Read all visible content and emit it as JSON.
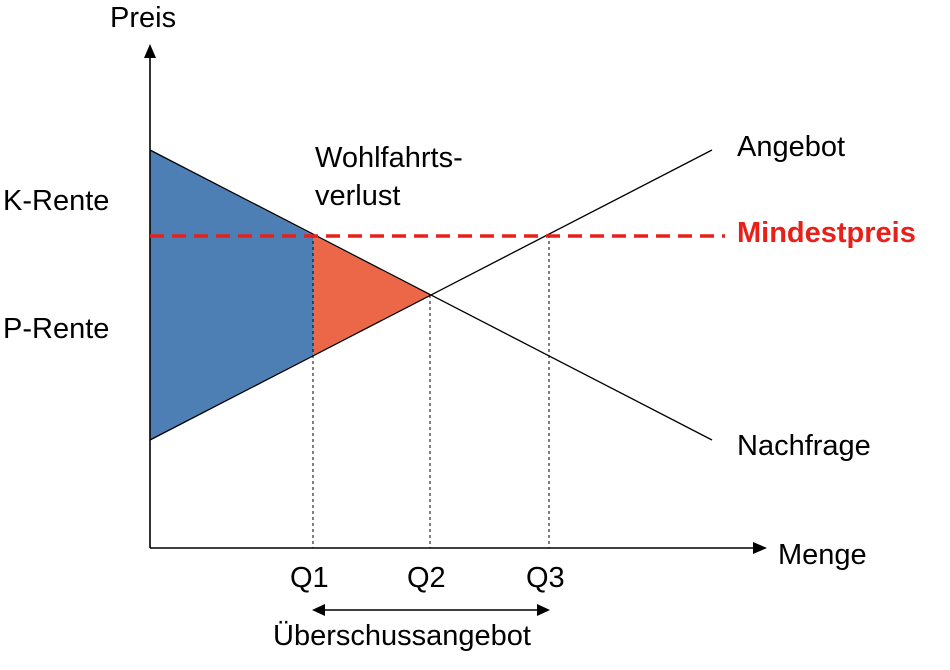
{
  "axes": {
    "y_label": "Preis",
    "x_label": "Menge"
  },
  "curves": {
    "supply_label": "Angebot",
    "demand_label": "Nachfrage"
  },
  "price_floor": {
    "label": "Mindestpreis",
    "color": "#e8201a"
  },
  "areas": {
    "consumer_surplus_label": "K-Rente",
    "producer_surplus_label": "P-Rente",
    "deadweight_loss_label_line1": "Wohlfahrts-",
    "deadweight_loss_label_line2": "verlust",
    "surplus_color": "#4e7fb4",
    "loss_color": "#ec6747"
  },
  "quantities": {
    "q1": "Q1",
    "q2": "Q2",
    "q3": "Q3"
  },
  "excess_supply_label": "Überschussangebot"
}
